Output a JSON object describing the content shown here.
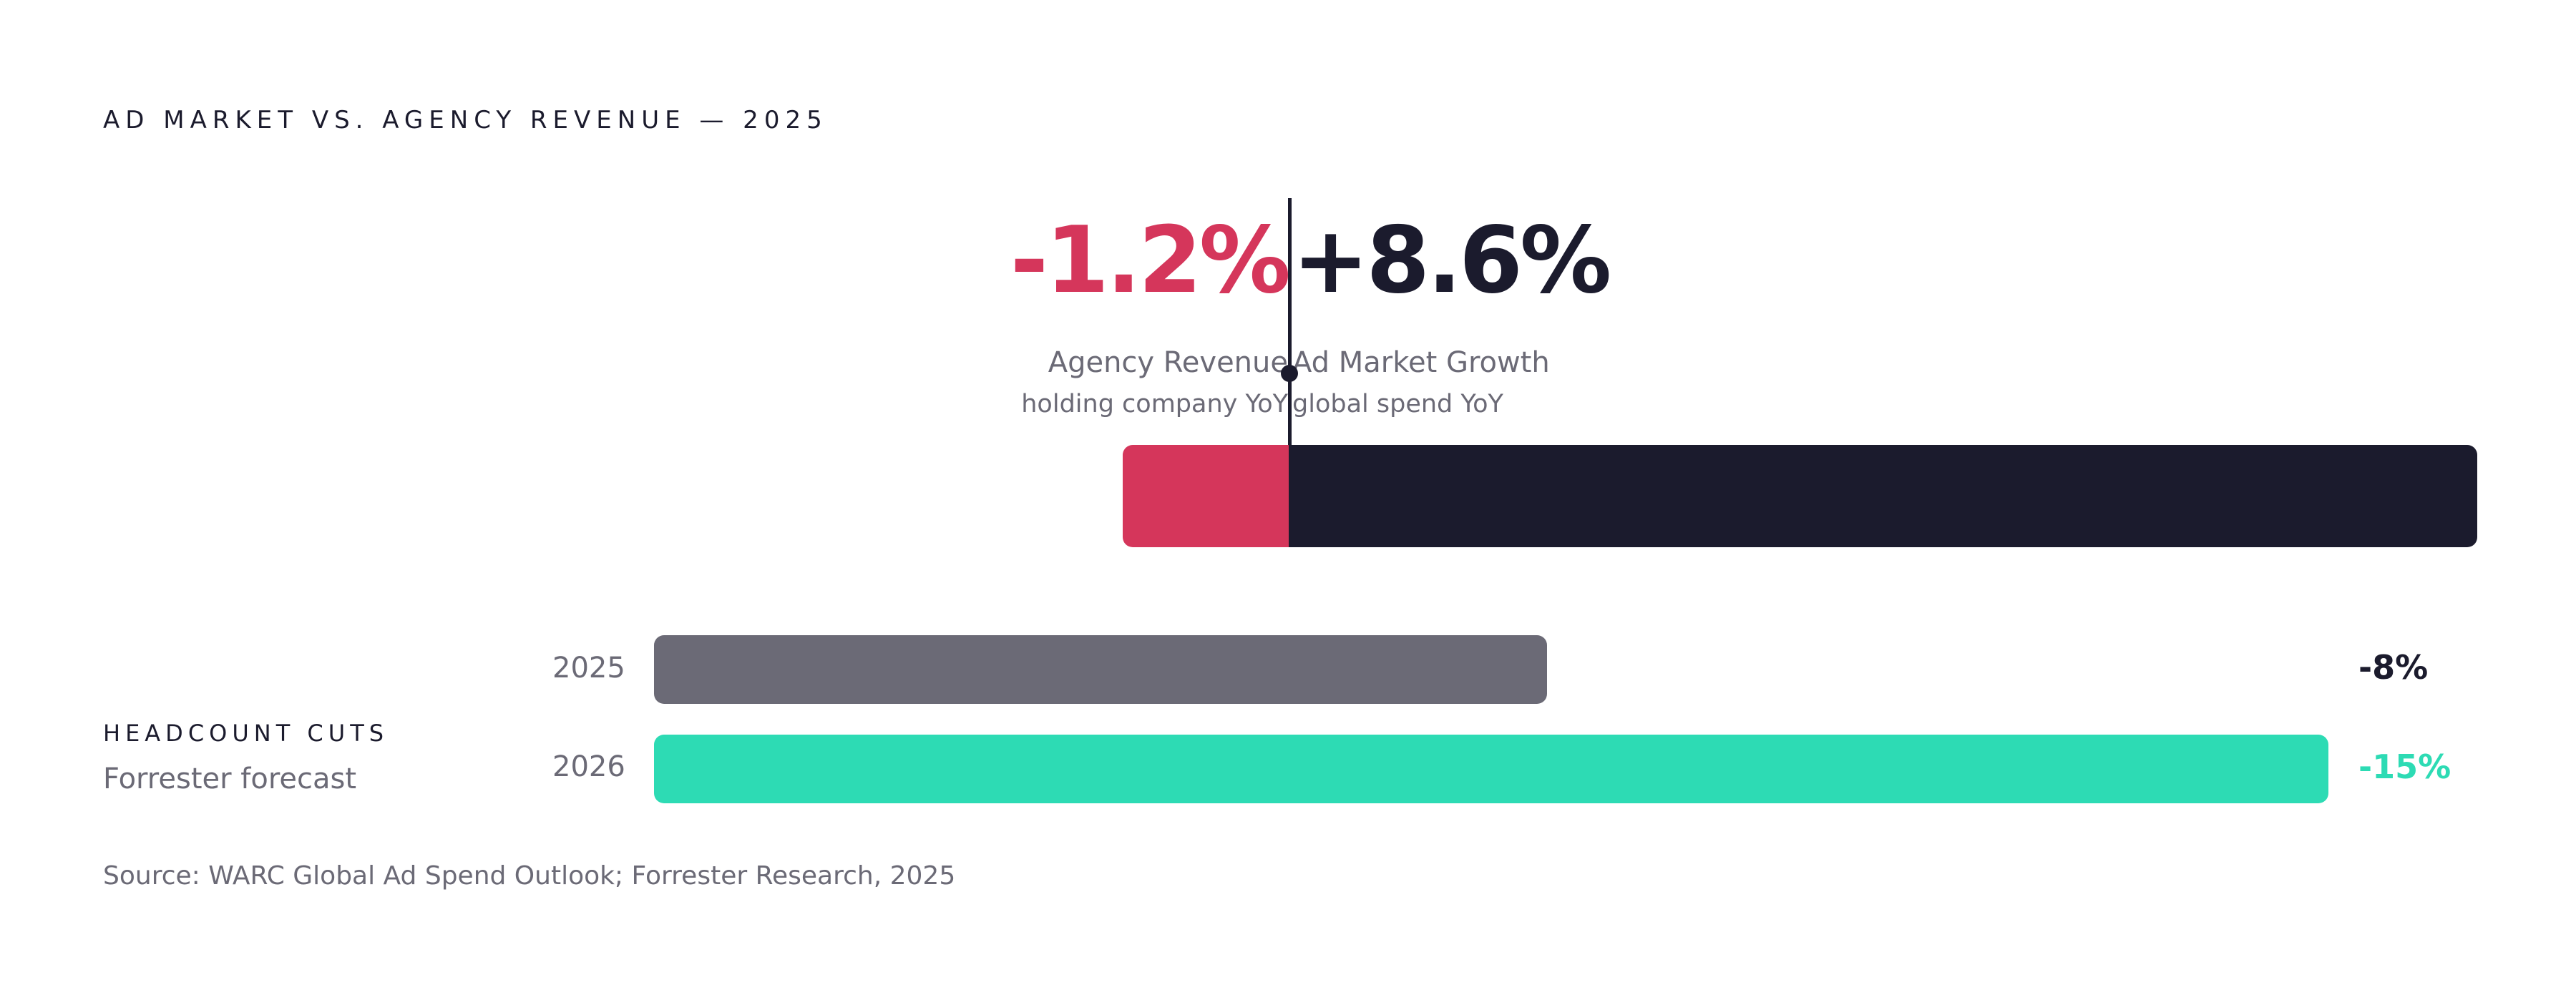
{
  "title": "AD MARKET VS. AGENCY REVENUE — 2025",
  "chart_data": [
    {
      "type": "bar",
      "orientation": "diverging-horizontal",
      "series": [
        {
          "name": "Agency Revenue",
          "subtitle": "holding company YoY",
          "value": -1.2,
          "label": "-1.2%",
          "color": "#d5365b"
        },
        {
          "name": "Ad Market Growth",
          "subtitle": "global spend YoY",
          "value": 8.6,
          "label": "+8.6%",
          "color": "#1b1b2d"
        }
      ],
      "baseline": 0
    },
    {
      "type": "bar",
      "orientation": "horizontal",
      "title": "HEADCOUNT CUTS",
      "subtitle": "Forrester forecast",
      "categories": [
        "2025",
        "2026"
      ],
      "values": [
        -8,
        -15
      ],
      "labels": [
        "-8%",
        "-15%"
      ],
      "colors": [
        "#6b6a76",
        "#2ddbb4"
      ],
      "max_abs": 15
    }
  ],
  "source": "Source: WARC Global Ad Spend Outlook; Forrester Research, 2025"
}
